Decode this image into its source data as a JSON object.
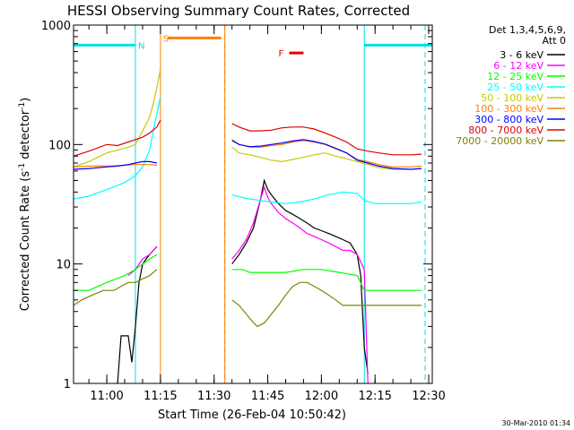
{
  "chart_data": {
    "type": "line",
    "title": "HESSI Observing Summary Count Rates, Corrected",
    "xlabel": "Start Time (26-Feb-04 10:50:42)",
    "ylabel_main": "Corrected Count Rate (s",
    "ylabel_sup1": "-1",
    "ylabel_mid": " detector",
    "ylabel_sup2": "-1",
    "ylabel_end": ")",
    "ylabel": "Corrected Count Rate (s-1 detector-1)",
    "y_scale": "log",
    "ylim": [
      1,
      1000
    ],
    "xlim": [
      "10:50:42",
      "12:31:00"
    ],
    "x_ticks": [
      "11:00",
      "11:15",
      "11:30",
      "11:45",
      "12:00",
      "12:15",
      "12:30"
    ],
    "y_ticks": [
      "1",
      "10",
      "100",
      "1000"
    ],
    "footer_date": "30-Mar-2010 01:34",
    "legend_header": [
      "Det 1,3,4,5,6,9,",
      "Att 0"
    ],
    "legend_position": "right",
    "flags": {
      "S_label": "S",
      "F_label": "F",
      "N_label": "N",
      "S_color": "#ff8000",
      "F_color": "#e00000",
      "N_color": "#00e0e0",
      "night_bars": [
        [
          "10:50:42",
          "11:08"
        ],
        [
          "12:12",
          "12:31"
        ]
      ],
      "saa_bar": [
        "11:17",
        "11:32"
      ],
      "flare_bar": [
        "11:51",
        "11:55"
      ],
      "night_lines": [
        "11:08",
        "12:12"
      ],
      "night_dashed": [
        "11:08",
        "12:29"
      ],
      "saa_lines": [
        "11:15",
        "11:33"
      ],
      "saa_dashed": [
        "11:33"
      ],
      "flare_level": 800,
      "bar_level": 680,
      "saa_level": 780
    },
    "series": [
      {
        "name": "3 - 6 keV",
        "color": "#000000",
        "points": [
          [
            "11:03",
            1
          ],
          [
            "11:04",
            2.5
          ],
          [
            "11:05",
            2.5
          ],
          [
            "11:06",
            2.5
          ],
          [
            "11:07",
            1.5
          ],
          [
            "11:08",
            3
          ],
          [
            "11:09",
            7
          ],
          [
            "11:10",
            10
          ],
          [
            "11:11",
            11
          ],
          [
            "11:12",
            12
          ],
          [
            "11:13",
            13
          ],
          [
            "11:14",
            14
          ],
          [
            "11:35",
            10
          ],
          [
            "11:37",
            12
          ],
          [
            "11:39",
            15
          ],
          [
            "11:41",
            20
          ],
          [
            "11:43",
            35
          ],
          [
            "11:44",
            50
          ],
          [
            "11:45",
            42
          ],
          [
            "11:46",
            38
          ],
          [
            "11:48",
            32
          ],
          [
            "11:50",
            28
          ],
          [
            "11:52",
            26
          ],
          [
            "11:54",
            24
          ],
          [
            "11:56",
            22
          ],
          [
            "11:58",
            20
          ],
          [
            "12:00",
            19
          ],
          [
            "12:02",
            18
          ],
          [
            "12:04",
            17
          ],
          [
            "12:06",
            16
          ],
          [
            "12:08",
            15
          ],
          [
            "12:10",
            12
          ],
          [
            "12:11",
            8
          ],
          [
            "12:12",
            2
          ],
          [
            "12:13",
            1.2
          ]
        ]
      },
      {
        "name": "6 - 12 keV",
        "color": "#ff00ff",
        "points": [
          [
            "11:06",
            8
          ],
          [
            "11:08",
            9
          ],
          [
            "11:10",
            11
          ],
          [
            "11:12",
            12
          ],
          [
            "11:14",
            14
          ],
          [
            "11:35",
            11
          ],
          [
            "11:37",
            13
          ],
          [
            "11:39",
            16
          ],
          [
            "11:41",
            22
          ],
          [
            "11:43",
            35
          ],
          [
            "11:44",
            44
          ],
          [
            "11:45",
            36
          ],
          [
            "11:46",
            32
          ],
          [
            "11:48",
            27
          ],
          [
            "11:50",
            24
          ],
          [
            "11:52",
            22
          ],
          [
            "11:54",
            20
          ],
          [
            "11:56",
            18
          ],
          [
            "11:58",
            17
          ],
          [
            "12:00",
            16
          ],
          [
            "12:02",
            15
          ],
          [
            "12:04",
            14
          ],
          [
            "12:06",
            13
          ],
          [
            "12:08",
            13
          ],
          [
            "12:10",
            12
          ],
          [
            "12:12",
            9
          ],
          [
            "12:13",
            1
          ]
        ]
      },
      {
        "name": "12 - 25 keV",
        "color": "#00ff00",
        "points": [
          [
            "10:50",
            6
          ],
          [
            "10:55",
            6
          ],
          [
            "11:00",
            7
          ],
          [
            "11:05",
            8
          ],
          [
            "11:08",
            9
          ],
          [
            "11:10",
            10
          ],
          [
            "11:12",
            11
          ],
          [
            "11:14",
            12
          ],
          [
            "11:35",
            9
          ],
          [
            "11:38",
            9
          ],
          [
            "11:40",
            8.5
          ],
          [
            "11:45",
            8.5
          ],
          [
            "11:50",
            8.5
          ],
          [
            "11:55",
            9
          ],
          [
            "12:00",
            9
          ],
          [
            "12:05",
            8.5
          ],
          [
            "12:10",
            8
          ],
          [
            "12:12",
            6
          ],
          [
            "12:15",
            6
          ],
          [
            "12:20",
            6
          ],
          [
            "12:25",
            6
          ],
          [
            "12:28",
            6
          ]
        ]
      },
      {
        "name": "25 - 50 keV",
        "color": "#00ffff",
        "points": [
          [
            "10:50",
            35
          ],
          [
            "10:55",
            37
          ],
          [
            "11:00",
            42
          ],
          [
            "11:05",
            48
          ],
          [
            "11:08",
            55
          ],
          [
            "11:10",
            65
          ],
          [
            "11:12",
            90
          ],
          [
            "11:13",
            130
          ],
          [
            "11:14",
            180
          ],
          [
            "11:15",
            250
          ],
          [
            "11:35",
            38
          ],
          [
            "11:38",
            36
          ],
          [
            "11:40",
            35
          ],
          [
            "11:43",
            34
          ],
          [
            "11:46",
            33
          ],
          [
            "11:50",
            32
          ],
          [
            "11:54",
            33
          ],
          [
            "11:58",
            35
          ],
          [
            "12:02",
            38
          ],
          [
            "12:06",
            40
          ],
          [
            "12:10",
            39
          ],
          [
            "12:12",
            34
          ],
          [
            "12:15",
            32
          ],
          [
            "12:20",
            32
          ],
          [
            "12:25",
            32
          ],
          [
            "12:28",
            33
          ]
        ]
      },
      {
        "name": "50 - 100 keV",
        "color": "#c8c800",
        "points": [
          [
            "10:50",
            65
          ],
          [
            "10:55",
            72
          ],
          [
            "11:00",
            85
          ],
          [
            "11:03",
            90
          ],
          [
            "11:06",
            95
          ],
          [
            "11:08",
            100
          ],
          [
            "11:10",
            130
          ],
          [
            "11:12",
            170
          ],
          [
            "11:13",
            220
          ],
          [
            "11:14",
            300
          ],
          [
            "11:15",
            430
          ],
          [
            "11:35",
            95
          ],
          [
            "11:37",
            85
          ],
          [
            "11:40",
            82
          ],
          [
            "11:43",
            78
          ],
          [
            "11:46",
            74
          ],
          [
            "11:49",
            72
          ],
          [
            "11:52",
            75
          ],
          [
            "11:55",
            78
          ],
          [
            "11:58",
            82
          ],
          [
            "12:01",
            85
          ],
          [
            "12:04",
            80
          ],
          [
            "12:07",
            76
          ],
          [
            "12:10",
            72
          ],
          [
            "12:13",
            68
          ],
          [
            "12:16",
            64
          ],
          [
            "12:20",
            62
          ],
          [
            "12:25",
            62
          ],
          [
            "12:28",
            63
          ]
        ]
      },
      {
        "name": "100 - 300 keV",
        "color": "#ff8000",
        "points": [
          [
            "10:50",
            65
          ],
          [
            "10:55",
            66
          ],
          [
            "11:00",
            66
          ],
          [
            "11:05",
            67
          ],
          [
            "11:08",
            68
          ],
          [
            "11:12",
            68
          ],
          [
            "11:14",
            67
          ],
          [
            "11:35",
            110
          ],
          [
            "11:37",
            100
          ],
          [
            "11:40",
            95
          ],
          [
            "11:43",
            95
          ],
          [
            "11:46",
            98
          ],
          [
            "11:49",
            100
          ],
          [
            "11:52",
            105
          ],
          [
            "11:55",
            108
          ],
          [
            "11:58",
            105
          ],
          [
            "12:01",
            100
          ],
          [
            "12:04",
            92
          ],
          [
            "12:07",
            85
          ],
          [
            "12:10",
            75
          ],
          [
            "12:13",
            72
          ],
          [
            "12:16",
            68
          ],
          [
            "12:20",
            65
          ],
          [
            "12:25",
            65
          ],
          [
            "12:28",
            66
          ]
        ]
      },
      {
        "name": "300 - 800 keV",
        "color": "#0000ff",
        "points": [
          [
            "10:50",
            62
          ],
          [
            "10:55",
            63
          ],
          [
            "11:00",
            65
          ],
          [
            "11:03",
            66
          ],
          [
            "11:06",
            68
          ],
          [
            "11:08",
            70
          ],
          [
            "11:10",
            72
          ],
          [
            "11:12",
            72
          ],
          [
            "11:14",
            70
          ],
          [
            "11:35",
            108
          ],
          [
            "11:37",
            100
          ],
          [
            "11:40",
            96
          ],
          [
            "11:43",
            97
          ],
          [
            "11:46",
            100
          ],
          [
            "11:49",
            103
          ],
          [
            "11:52",
            107
          ],
          [
            "11:55",
            110
          ],
          [
            "11:58",
            106
          ],
          [
            "12:01",
            101
          ],
          [
            "12:04",
            93
          ],
          [
            "12:07",
            85
          ],
          [
            "12:10",
            74
          ],
          [
            "12:13",
            70
          ],
          [
            "12:16",
            66
          ],
          [
            "12:20",
            63
          ],
          [
            "12:25",
            62
          ],
          [
            "12:28",
            63
          ]
        ]
      },
      {
        "name": "800 - 7000 keV",
        "color": "#e00000",
        "points": [
          [
            "10:50",
            80
          ],
          [
            "10:55",
            88
          ],
          [
            "11:00",
            100
          ],
          [
            "11:03",
            98
          ],
          [
            "11:06",
            105
          ],
          [
            "11:08",
            110
          ],
          [
            "11:10",
            115
          ],
          [
            "11:12",
            125
          ],
          [
            "11:14",
            140
          ],
          [
            "11:15",
            160
          ],
          [
            "11:35",
            150
          ],
          [
            "11:37",
            140
          ],
          [
            "11:40",
            130
          ],
          [
            "11:43",
            130
          ],
          [
            "11:46",
            132
          ],
          [
            "11:49",
            138
          ],
          [
            "11:52",
            140
          ],
          [
            "11:55",
            140
          ],
          [
            "11:58",
            135
          ],
          [
            "12:01",
            125
          ],
          [
            "12:04",
            115
          ],
          [
            "12:07",
            105
          ],
          [
            "12:10",
            92
          ],
          [
            "12:13",
            88
          ],
          [
            "12:16",
            85
          ],
          [
            "12:20",
            82
          ],
          [
            "12:25",
            82
          ],
          [
            "12:28",
            83
          ]
        ]
      },
      {
        "name": "7000 - 20000 keV",
        "color": "#808000",
        "points": [
          [
            "10:50",
            4.5
          ],
          [
            "10:53",
            5
          ],
          [
            "10:56",
            5.5
          ],
          [
            "10:59",
            6
          ],
          [
            "11:02",
            6
          ],
          [
            "11:04",
            6.5
          ],
          [
            "11:06",
            7
          ],
          [
            "11:08",
            7
          ],
          [
            "11:10",
            7.5
          ],
          [
            "11:12",
            8
          ],
          [
            "11:14",
            9
          ],
          [
            "11:35",
            5
          ],
          [
            "11:37",
            4.5
          ],
          [
            "11:40",
            3.5
          ],
          [
            "11:42",
            3
          ],
          [
            "11:44",
            3.2
          ],
          [
            "11:46",
            3.8
          ],
          [
            "11:48",
            4.5
          ],
          [
            "11:50",
            5.5
          ],
          [
            "11:52",
            6.5
          ],
          [
            "11:54",
            7
          ],
          [
            "11:56",
            7
          ],
          [
            "11:58",
            6.5
          ],
          [
            "12:00",
            6
          ],
          [
            "12:02",
            5.5
          ],
          [
            "12:04",
            5
          ],
          [
            "12:06",
            4.5
          ],
          [
            "12:08",
            4.5
          ],
          [
            "12:10",
            4.5
          ],
          [
            "12:12",
            4.5
          ],
          [
            "12:15",
            4.5
          ],
          [
            "12:20",
            4.5
          ],
          [
            "12:25",
            4.5
          ],
          [
            "12:28",
            4.5
          ]
        ]
      }
    ]
  }
}
